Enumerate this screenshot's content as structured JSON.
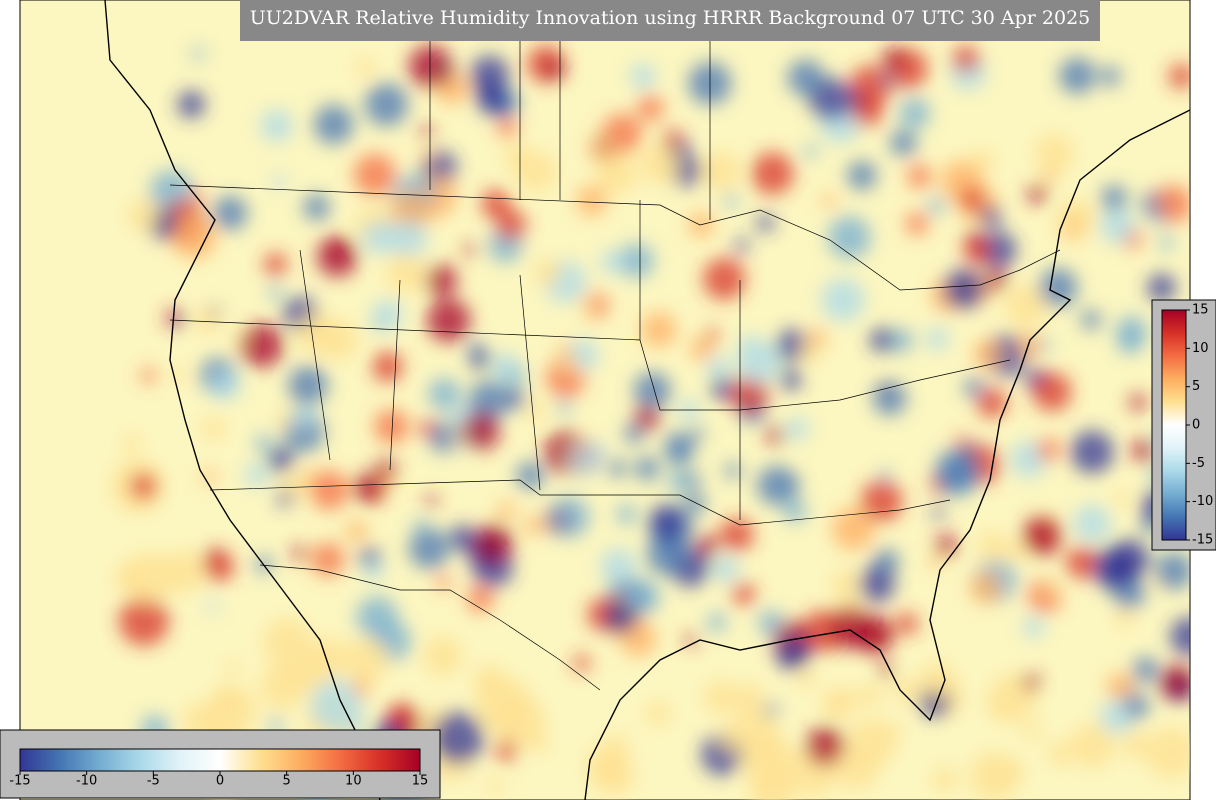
{
  "map": {
    "title": "UU2DVAR Relative Humidity Innovation using HRRR Background 07 UTC 30 Apr 2025",
    "colorbar": {
      "range": [
        -15,
        15
      ],
      "ticks": [
        -15,
        -10,
        -5,
        0,
        5,
        10,
        15
      ],
      "colors": [
        "#313695",
        "#4575b4",
        "#74add1",
        "#abd9e9",
        "#e0f3f8",
        "#ffffff",
        "#fee090",
        "#fdae61",
        "#f46d43",
        "#d73027",
        "#a50026"
      ]
    }
  }
}
